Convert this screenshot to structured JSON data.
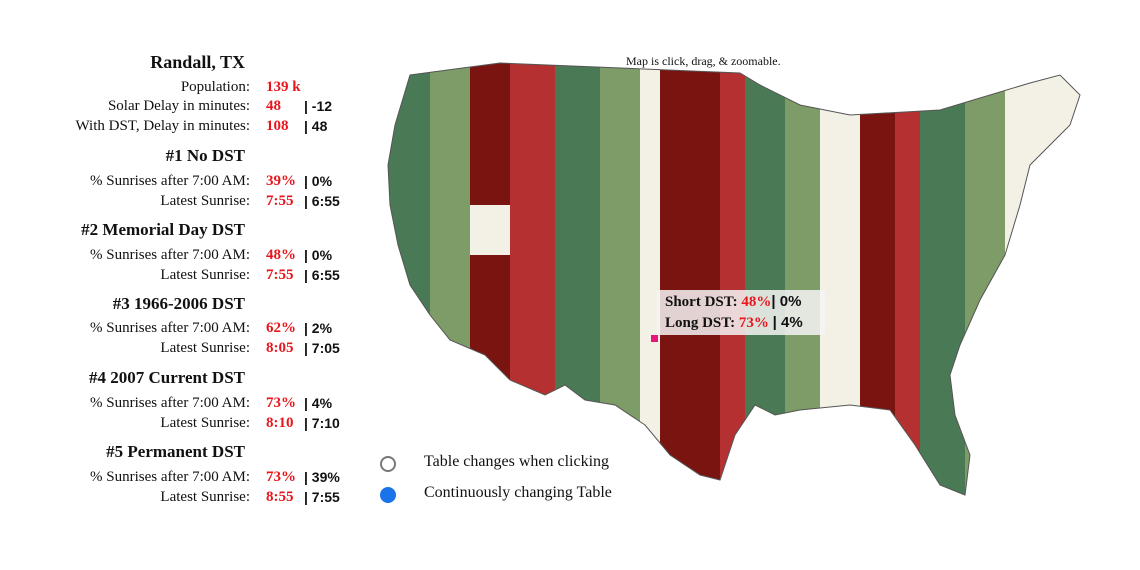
{
  "location": {
    "title": "Randall, TX",
    "population_label": "Population:",
    "population_value": "139 k",
    "solar_label": "Solar Delay in minutes:",
    "solar_value": "48",
    "solar_value2": "| -12",
    "dst_label": "With DST, Delay in minutes:",
    "dst_value": "108",
    "dst_value2": "| 48"
  },
  "scenarios": [
    {
      "heading": "#1 No DST",
      "pct_label": "% Sunrises after 7:00 AM:",
      "pct": "39%",
      "pct2": "| 0%",
      "late_label": "Latest Sunrise:",
      "late": "7:55",
      "late2": "| 6:55"
    },
    {
      "heading": "#2 Memorial Day DST",
      "pct_label": "% Sunrises after 7:00 AM:",
      "pct": "48%",
      "pct2": "| 0%",
      "late_label": "Latest Sunrise:",
      "late": "7:55",
      "late2": "| 6:55"
    },
    {
      "heading": "#3 1966-2006 DST",
      "pct_label": "% Sunrises after 7:00 AM:",
      "pct": "62%",
      "pct2": "| 2%",
      "late_label": "Latest Sunrise:",
      "late": "8:05",
      "late2": "| 7:05"
    },
    {
      "heading": "#4 2007 Current DST",
      "pct_label": "% Sunrises after 7:00 AM:",
      "pct": "73%",
      "pct2": "| 4%",
      "late_label": "Latest Sunrise:",
      "late": "8:10",
      "late2": "| 7:10"
    },
    {
      "heading": "#5 Permanent DST",
      "pct_label": "% Sunrises after 7:00 AM:",
      "pct": "73%",
      "pct2": "| 39%",
      "late_label": "Latest Sunrise:",
      "late": "8:55",
      "late2": "| 7:55"
    }
  ],
  "map": {
    "note": "Map is click, drag, & zoomable.",
    "tooltip": {
      "short_label": "Short DST:",
      "short_value": "48%",
      "short_value2": "| 0%",
      "long_label": "Long DST:",
      "long_value": "73%",
      "long_value2": "| 4%"
    },
    "colors": {
      "dark_red": "#7a1410",
      "red": "#b53030",
      "dark_green": "#4a7a55",
      "green": "#7d9c67",
      "cream": "#f3f1e6",
      "marker": "#e8157b"
    }
  },
  "legend": {
    "click_label": "Table changes when clicking",
    "continuous_label": "Continuously changing Table"
  }
}
